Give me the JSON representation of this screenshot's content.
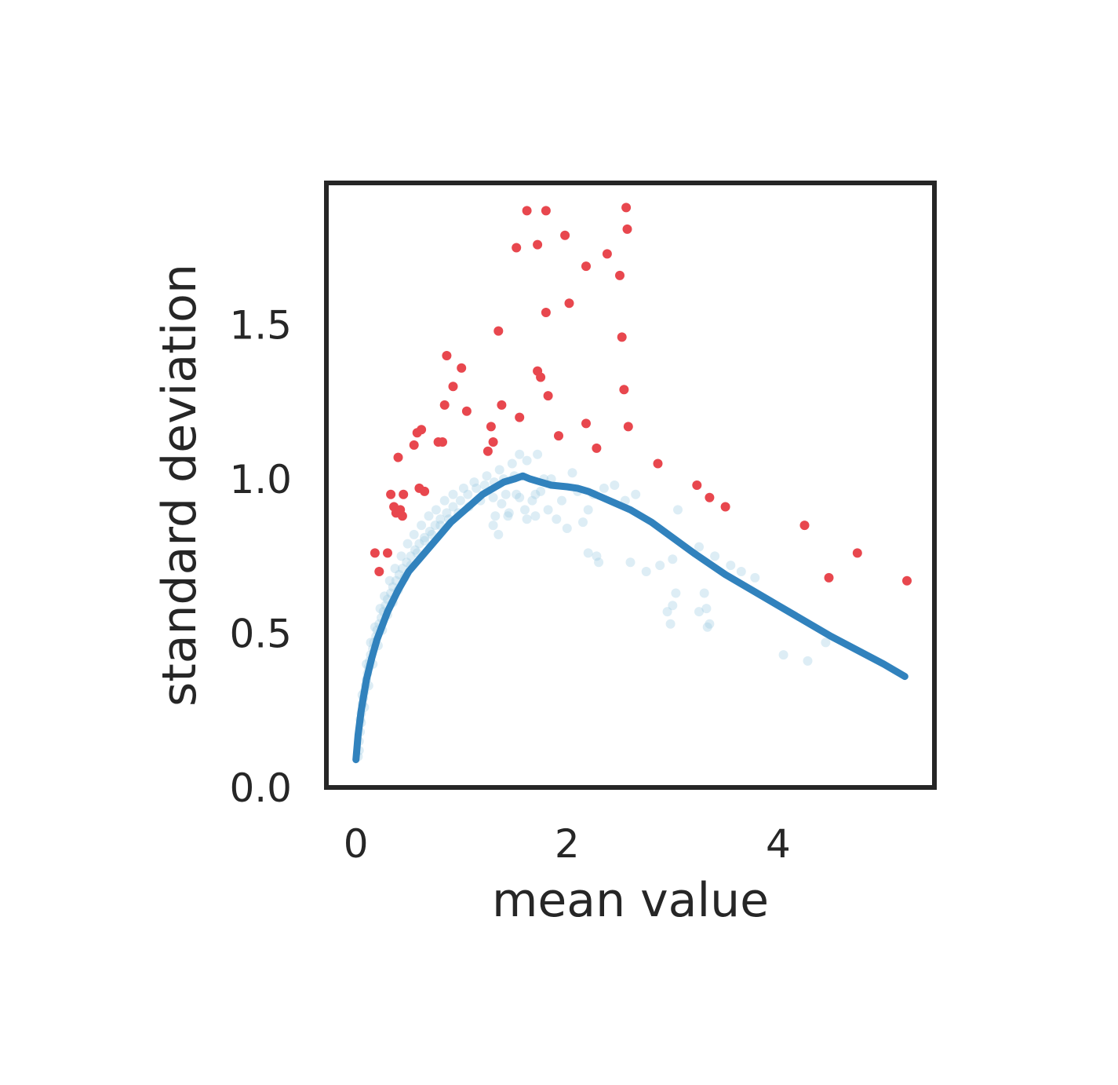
{
  "chart_data": {
    "type": "scatter",
    "title": "",
    "xlabel": "mean value",
    "ylabel": "standard deviation",
    "xlim": [
      -0.28,
      5.48
    ],
    "ylim": [
      0.0,
      1.96
    ],
    "xticks": [
      0,
      2,
      4
    ],
    "xtick_labels": [
      "0",
      "2",
      "4"
    ],
    "yticks": [
      0.0,
      0.5,
      1.0,
      1.5
    ],
    "ytick_labels": [
      "0.0",
      "0.5",
      "1.0",
      "1.5"
    ],
    "grid": false,
    "colors": {
      "background_points": "#9ecae1",
      "highlight_points": "#e8474e",
      "trend_line": "#3182bd",
      "axes": "#262626"
    },
    "series": [
      {
        "role": "background",
        "points": [
          [
            0.02,
            0.1
          ],
          [
            0.03,
            0.12
          ],
          [
            0.03,
            0.15
          ],
          [
            0.04,
            0.18
          ],
          [
            0.05,
            0.21
          ],
          [
            0.05,
            0.24
          ],
          [
            0.06,
            0.27
          ],
          [
            0.07,
            0.29
          ],
          [
            0.08,
            0.31
          ],
          [
            0.09,
            0.33
          ],
          [
            0.1,
            0.35
          ],
          [
            0.11,
            0.37
          ],
          [
            0.12,
            0.39
          ],
          [
            0.13,
            0.41
          ],
          [
            0.14,
            0.43
          ],
          [
            0.16,
            0.45
          ],
          [
            0.17,
            0.47
          ],
          [
            0.19,
            0.49
          ],
          [
            0.2,
            0.51
          ],
          [
            0.22,
            0.53
          ],
          [
            0.24,
            0.55
          ],
          [
            0.26,
            0.57
          ],
          [
            0.28,
            0.59
          ],
          [
            0.3,
            0.61
          ],
          [
            0.33,
            0.63
          ],
          [
            0.35,
            0.65
          ],
          [
            0.38,
            0.67
          ],
          [
            0.41,
            0.69
          ],
          [
            0.44,
            0.71
          ],
          [
            0.48,
            0.73
          ],
          [
            0.52,
            0.75
          ],
          [
            0.56,
            0.77
          ],
          [
            0.6,
            0.79
          ],
          [
            0.65,
            0.81
          ],
          [
            0.7,
            0.83
          ],
          [
            0.75,
            0.85
          ],
          [
            0.8,
            0.87
          ],
          [
            0.86,
            0.89
          ],
          [
            0.92,
            0.91
          ],
          [
            0.99,
            0.93
          ],
          [
            1.06,
            0.95
          ],
          [
            1.14,
            0.97
          ],
          [
            1.22,
            0.98
          ],
          [
            1.31,
            0.99
          ],
          [
            1.4,
            1.0
          ],
          [
            0.04,
            0.22
          ],
          [
            0.06,
            0.3
          ],
          [
            0.08,
            0.26
          ],
          [
            0.1,
            0.4
          ],
          [
            0.12,
            0.33
          ],
          [
            0.14,
            0.47
          ],
          [
            0.16,
            0.4
          ],
          [
            0.18,
            0.52
          ],
          [
            0.21,
            0.46
          ],
          [
            0.23,
            0.58
          ],
          [
            0.25,
            0.51
          ],
          [
            0.27,
            0.62
          ],
          [
            0.3,
            0.56
          ],
          [
            0.32,
            0.67
          ],
          [
            0.35,
            0.6
          ],
          [
            0.37,
            0.71
          ],
          [
            0.4,
            0.64
          ],
          [
            0.43,
            0.75
          ],
          [
            0.46,
            0.68
          ],
          [
            0.49,
            0.79
          ],
          [
            0.52,
            0.72
          ],
          [
            0.55,
            0.82
          ],
          [
            0.58,
            0.76
          ],
          [
            0.62,
            0.85
          ],
          [
            0.65,
            0.8
          ],
          [
            0.69,
            0.88
          ],
          [
            0.72,
            0.82
          ],
          [
            0.76,
            0.9
          ],
          [
            0.8,
            0.85
          ],
          [
            0.84,
            0.93
          ],
          [
            0.88,
            0.87
          ],
          [
            0.92,
            0.95
          ],
          [
            0.97,
            0.89
          ],
          [
            1.02,
            0.97
          ],
          [
            1.07,
            0.91
          ],
          [
            1.12,
            0.99
          ],
          [
            1.18,
            0.93
          ],
          [
            1.24,
            1.01
          ],
          [
            1.3,
            0.94
          ],
          [
            1.36,
            1.03
          ],
          [
            1.42,
            0.95
          ],
          [
            1.48,
            1.05
          ],
          [
            1.55,
            0.94
          ],
          [
            1.62,
            1.06
          ],
          [
            1.7,
            0.95
          ],
          [
            1.78,
            1.0
          ],
          [
            1.32,
            0.88
          ],
          [
            1.38,
            0.92
          ],
          [
            1.45,
            0.89
          ],
          [
            1.52,
            0.95
          ],
          [
            1.6,
            0.9
          ],
          [
            1.67,
            0.93
          ],
          [
            1.75,
            0.96
          ],
          [
            1.82,
            0.9
          ],
          [
            1.3,
            0.85
          ],
          [
            1.35,
            0.82
          ],
          [
            1.44,
            0.88
          ],
          [
            1.62,
            0.87
          ],
          [
            1.7,
            0.88
          ],
          [
            1.5,
            1.01
          ],
          [
            1.55,
            1.08
          ],
          [
            1.72,
            1.08
          ],
          [
            1.85,
            1.0
          ],
          [
            1.95,
            0.93
          ],
          [
            2.05,
            1.02
          ],
          [
            2.1,
            0.96
          ],
          [
            2.2,
            0.9
          ],
          [
            2.25,
            0.95
          ],
          [
            2.35,
            0.97
          ],
          [
            2.45,
            0.98
          ],
          [
            2.55,
            0.93
          ],
          [
            2.65,
            0.95
          ],
          [
            1.9,
            0.87
          ],
          [
            2.0,
            0.84
          ],
          [
            2.15,
            0.86
          ],
          [
            2.2,
            0.76
          ],
          [
            2.28,
            0.75
          ],
          [
            2.3,
            0.73
          ],
          [
            2.6,
            0.73
          ],
          [
            2.75,
            0.7
          ],
          [
            2.88,
            0.72
          ],
          [
            3.0,
            0.74
          ],
          [
            3.05,
            0.9
          ],
          [
            3.25,
            0.78
          ],
          [
            3.4,
            0.75
          ],
          [
            3.55,
            0.72
          ],
          [
            3.65,
            0.7
          ],
          [
            3.78,
            0.68
          ],
          [
            3.03,
            0.63
          ],
          [
            3.0,
            0.59
          ],
          [
            3.3,
            0.63
          ],
          [
            2.95,
            0.57
          ],
          [
            2.98,
            0.53
          ],
          [
            3.25,
            0.57
          ],
          [
            3.32,
            0.58
          ],
          [
            3.35,
            0.53
          ],
          [
            3.33,
            0.52
          ],
          [
            4.05,
            0.43
          ],
          [
            4.28,
            0.41
          ],
          [
            4.45,
            0.47
          ]
        ]
      },
      {
        "role": "highlight",
        "points": [
          [
            0.18,
            0.76
          ],
          [
            0.22,
            0.7
          ],
          [
            0.3,
            0.76
          ],
          [
            0.33,
            0.95
          ],
          [
            0.36,
            0.91
          ],
          [
            0.38,
            0.89
          ],
          [
            0.4,
            1.07
          ],
          [
            0.42,
            0.9
          ],
          [
            0.44,
            0.88
          ],
          [
            0.45,
            0.95
          ],
          [
            0.55,
            1.11
          ],
          [
            0.58,
            1.15
          ],
          [
            0.6,
            0.97
          ],
          [
            0.62,
            1.16
          ],
          [
            0.65,
            0.96
          ],
          [
            0.78,
            1.12
          ],
          [
            0.82,
            1.12
          ],
          [
            0.84,
            1.24
          ],
          [
            0.86,
            1.4
          ],
          [
            0.92,
            1.3
          ],
          [
            1.0,
            1.36
          ],
          [
            1.05,
            1.22
          ],
          [
            1.25,
            1.09
          ],
          [
            1.28,
            1.17
          ],
          [
            1.3,
            1.12
          ],
          [
            1.35,
            1.48
          ],
          [
            1.38,
            1.24
          ],
          [
            1.52,
            1.75
          ],
          [
            1.55,
            1.2
          ],
          [
            1.62,
            1.87
          ],
          [
            1.72,
            1.35
          ],
          [
            1.72,
            1.76
          ],
          [
            1.75,
            1.33
          ],
          [
            1.8,
            1.87
          ],
          [
            1.8,
            1.54
          ],
          [
            1.82,
            1.27
          ],
          [
            1.92,
            1.14
          ],
          [
            1.98,
            1.79
          ],
          [
            2.02,
            1.57
          ],
          [
            2.18,
            1.69
          ],
          [
            2.18,
            1.18
          ],
          [
            2.28,
            1.1
          ],
          [
            2.38,
            1.73
          ],
          [
            2.5,
            1.66
          ],
          [
            2.52,
            1.46
          ],
          [
            2.54,
            1.29
          ],
          [
            2.56,
            1.88
          ],
          [
            2.57,
            1.81
          ],
          [
            2.58,
            1.17
          ],
          [
            2.86,
            1.05
          ],
          [
            3.23,
            0.98
          ],
          [
            3.35,
            0.94
          ],
          [
            3.5,
            0.91
          ],
          [
            4.25,
            0.85
          ],
          [
            4.48,
            0.68
          ],
          [
            4.75,
            0.76
          ],
          [
            5.22,
            0.67
          ]
        ]
      }
    ],
    "trend_line": [
      [
        0.0,
        0.09
      ],
      [
        0.02,
        0.17
      ],
      [
        0.05,
        0.25
      ],
      [
        0.1,
        0.35
      ],
      [
        0.15,
        0.42
      ],
      [
        0.2,
        0.48
      ],
      [
        0.3,
        0.57
      ],
      [
        0.4,
        0.64
      ],
      [
        0.5,
        0.7
      ],
      [
        0.6,
        0.74
      ],
      [
        0.7,
        0.78
      ],
      [
        0.8,
        0.82
      ],
      [
        0.9,
        0.86
      ],
      [
        1.0,
        0.89
      ],
      [
        1.1,
        0.92
      ],
      [
        1.2,
        0.95
      ],
      [
        1.3,
        0.97
      ],
      [
        1.4,
        0.99
      ],
      [
        1.5,
        1.0
      ],
      [
        1.58,
        1.01
      ],
      [
        1.65,
        1.0
      ],
      [
        1.75,
        0.99
      ],
      [
        1.85,
        0.98
      ],
      [
        2.0,
        0.975
      ],
      [
        2.1,
        0.97
      ],
      [
        2.2,
        0.96
      ],
      [
        2.4,
        0.93
      ],
      [
        2.6,
        0.9
      ],
      [
        2.8,
        0.86
      ],
      [
        3.0,
        0.81
      ],
      [
        3.2,
        0.76
      ],
      [
        3.5,
        0.69
      ],
      [
        4.0,
        0.59
      ],
      [
        4.5,
        0.49
      ],
      [
        5.0,
        0.4
      ],
      [
        5.2,
        0.36
      ]
    ]
  }
}
